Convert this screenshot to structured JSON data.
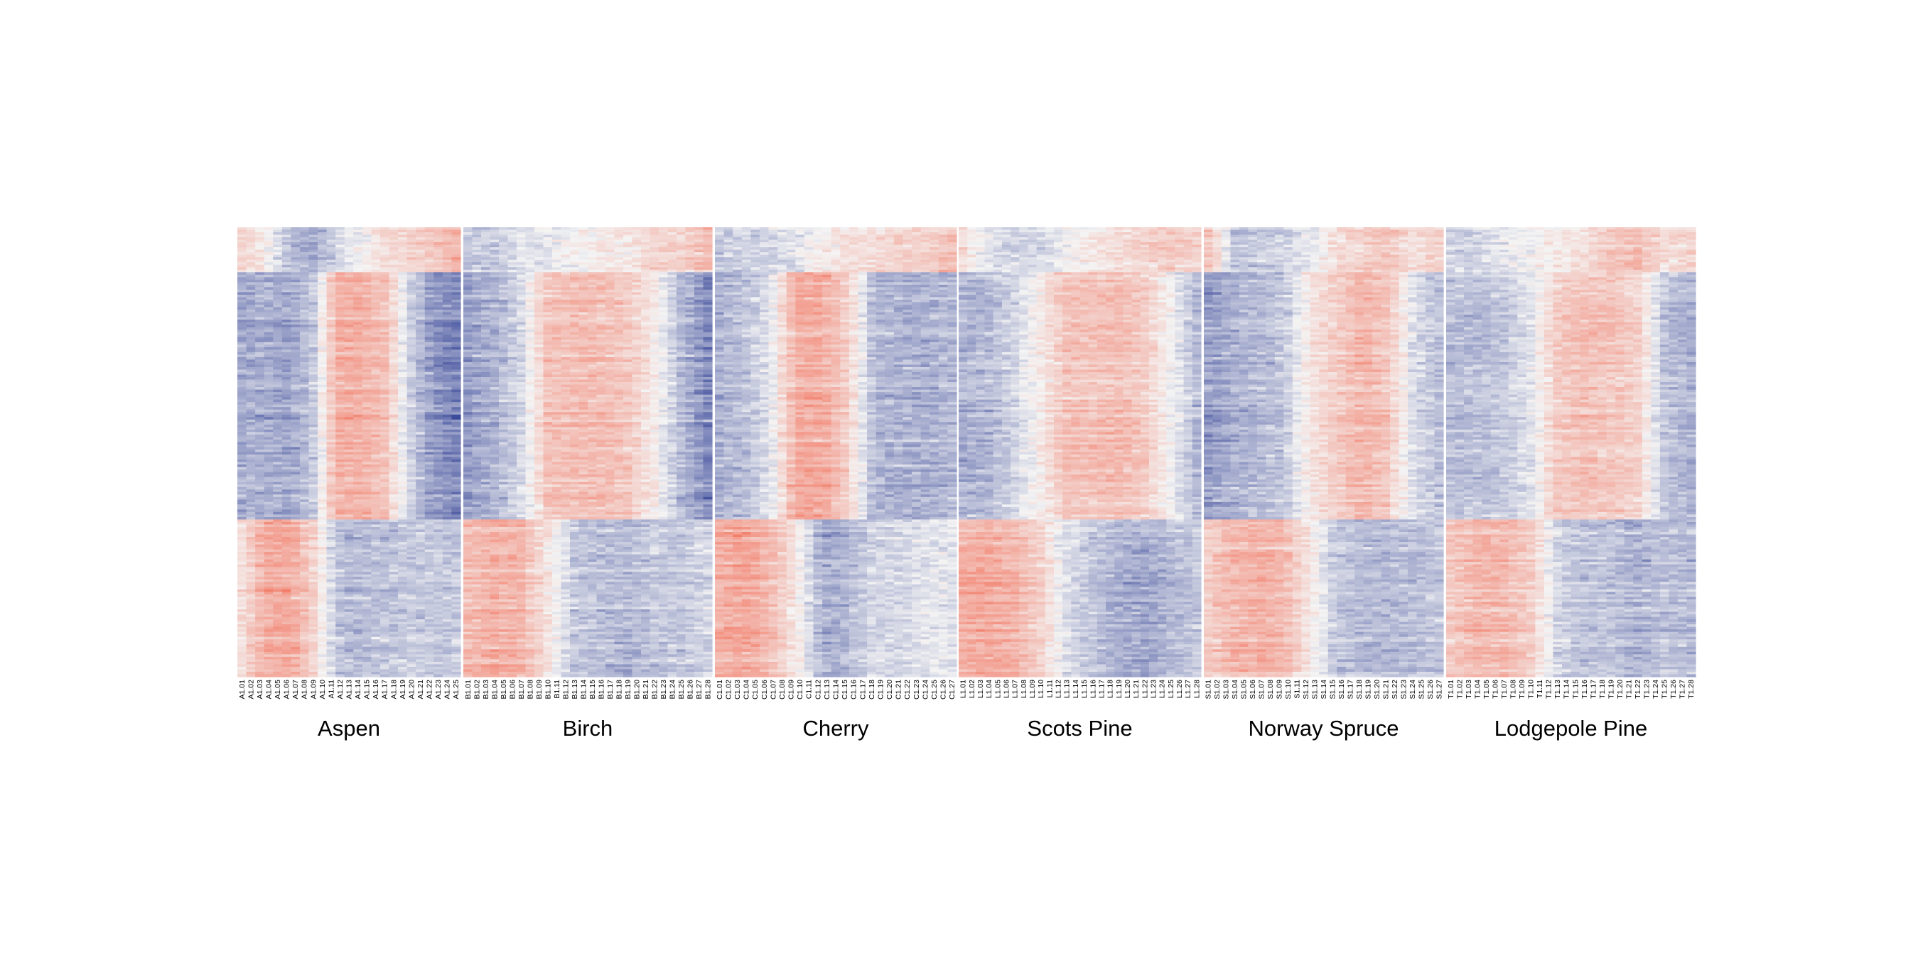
{
  "chart_data": {
    "type": "heatmap",
    "title": "",
    "colorscale": {
      "low": "#3b4a9a",
      "mid": "#f4f4f4",
      "high": "#f2735e"
    },
    "n_rows_displayed": 180,
    "row_groups": [
      {
        "rows": [
          0,
          18
        ],
        "profile": [
          0.4,
          0.1,
          -0.2,
          -0.3,
          -0.1,
          0.1,
          0.3,
          0.5,
          0.6,
          0.7
        ]
      },
      {
        "rows": [
          18,
          117
        ],
        "profile": [
          -0.35,
          -0.45,
          -0.25,
          0.55,
          0.65,
          0.55,
          0.05,
          -0.35,
          -0.45,
          -0.5
        ]
      },
      {
        "rows": [
          117,
          180
        ],
        "profile": [
          0.45,
          0.65,
          0.6,
          0.25,
          -0.2,
          -0.35,
          -0.4,
          -0.3,
          -0.3,
          -0.25
        ]
      }
    ],
    "panels": [
      {
        "name": "Aspen",
        "columns": [
          "A1.01",
          "A1.02",
          "A1.03",
          "A1.04",
          "A1.05",
          "A1.06",
          "A1.07",
          "A1.08",
          "A1.09",
          "A1.10",
          "A1.11",
          "A1.12",
          "A1.13",
          "A1.14",
          "A1.15",
          "A1.16",
          "A1.17",
          "A1.18",
          "A1.19",
          "A1.20",
          "A1.21",
          "A1.22",
          "A1.23",
          "A1.24",
          "A1.25"
        ],
        "profiles": [
          [
            0.3,
            0.1,
            -0.4,
            -0.5,
            -0.2,
            0.0,
            0.2,
            0.3,
            0.4,
            0.6
          ],
          [
            -0.5,
            -0.45,
            -0.55,
            -0.3,
            0.6,
            0.6,
            0.45,
            -0.2,
            -0.6,
            -0.75
          ],
          [
            0.2,
            0.65,
            0.7,
            0.3,
            -0.35,
            -0.4,
            -0.35,
            -0.3,
            -0.3,
            -0.3
          ]
        ]
      },
      {
        "name": "Birch",
        "columns": [
          "B1.01",
          "B1.02",
          "B1.03",
          "B1.04",
          "B1.05",
          "B1.06",
          "B1.07",
          "B1.08",
          "B1.09",
          "B1.10",
          "B1.11",
          "B1.12",
          "B1.13",
          "B1.14",
          "B1.15",
          "B1.16",
          "B1.17",
          "B1.18",
          "B1.19",
          "B1.20",
          "B1.21",
          "B1.22",
          "B1.23",
          "B1.24",
          "B1.25",
          "B1.26",
          "B1.27",
          "B1.28"
        ],
        "profiles": [
          [
            -0.3,
            -0.3,
            -0.1,
            -0.1,
            0.0,
            0.1,
            0.1,
            0.3,
            0.3,
            0.5
          ],
          [
            -0.6,
            -0.45,
            -0.2,
            0.45,
            0.5,
            0.5,
            0.4,
            0.1,
            -0.4,
            -0.75
          ],
          [
            0.5,
            0.6,
            0.55,
            0.15,
            -0.3,
            -0.35,
            -0.4,
            -0.3,
            -0.3,
            -0.2
          ]
        ]
      },
      {
        "name": "Cherry",
        "columns": [
          "C1.01",
          "C1.02",
          "C1.03",
          "C1.04",
          "C1.05",
          "C1.06",
          "C1.07",
          "C1.08",
          "C1.09",
          "C1.10",
          "C1.11",
          "C1.12",
          "C1.13",
          "C1.14",
          "C1.15",
          "C1.16",
          "C1.17",
          "C1.18",
          "C1.19",
          "C1.20",
          "C1.21",
          "C1.22",
          "C1.23",
          "C1.24",
          "C1.25",
          "C1.26",
          "C1.27"
        ],
        "profiles": [
          [
            -0.3,
            -0.2,
            -0.2,
            -0.1,
            0.1,
            0.2,
            0.2,
            0.3,
            0.3,
            0.5
          ],
          [
            -0.45,
            -0.35,
            -0.1,
            0.65,
            0.65,
            0.3,
            -0.4,
            -0.45,
            -0.45,
            -0.4
          ],
          [
            0.6,
            0.7,
            0.5,
            0.1,
            -0.5,
            -0.4,
            -0.2,
            -0.2,
            -0.1,
            -0.1
          ]
        ]
      },
      {
        "name": "Scots Pine",
        "columns": [
          "L1.01",
          "L1.02",
          "L1.03",
          "L1.04",
          "L1.05",
          "L1.06",
          "L1.07",
          "L1.08",
          "L1.09",
          "L1.10",
          "L1.11",
          "L1.12",
          "L1.13",
          "L1.14",
          "L1.15",
          "L1.16",
          "L1.17",
          "L1.18",
          "L1.19",
          "L1.20",
          "L1.21",
          "L1.22",
          "L1.23",
          "L1.24",
          "L1.25",
          "L1.26",
          "L1.27",
          "L1.28"
        ],
        "profiles": [
          [
            0.2,
            -0.1,
            -0.2,
            -0.2,
            0.0,
            0.1,
            0.2,
            0.3,
            0.4,
            0.3
          ],
          [
            -0.45,
            -0.4,
            -0.2,
            0.1,
            0.45,
            0.45,
            0.5,
            0.35,
            0.0,
            -0.4
          ],
          [
            0.6,
            0.65,
            0.55,
            0.3,
            -0.15,
            -0.3,
            -0.45,
            -0.5,
            -0.4,
            -0.3
          ]
        ]
      },
      {
        "name": "Norway Spruce",
        "columns": [
          "S1.01",
          "S1.02",
          "S1.03",
          "S1.04",
          "S1.05",
          "S1.06",
          "S1.07",
          "S1.08",
          "S1.09",
          "S1.10",
          "S1.11",
          "S1.12",
          "S1.13",
          "S1.14",
          "S1.15",
          "S1.16",
          "S1.17",
          "S1.18",
          "S1.19",
          "S1.20",
          "S1.21",
          "S1.22",
          "S1.23",
          "S1.24",
          "S1.25",
          "S1.26",
          "S1.27"
        ],
        "profiles": [
          [
            0.4,
            -0.3,
            -0.3,
            -0.2,
            -0.1,
            0.2,
            0.3,
            0.4,
            0.2,
            0.3
          ],
          [
            -0.6,
            -0.45,
            -0.4,
            -0.3,
            0.15,
            0.35,
            0.55,
            0.4,
            -0.15,
            -0.35
          ],
          [
            0.35,
            0.55,
            0.6,
            0.5,
            0.1,
            -0.3,
            -0.4,
            -0.4,
            -0.35,
            -0.3
          ]
        ]
      },
      {
        "name": "Lodgepole Pine",
        "columns": [
          "T1.01",
          "T1.02",
          "T1.03",
          "T1.04",
          "T1.05",
          "T1.06",
          "T1.07",
          "T1.08",
          "T1.09",
          "T1.10",
          "T1.11",
          "T1.12",
          "T1.13",
          "T1.14",
          "T1.15",
          "T1.16",
          "T1.17",
          "T1.18",
          "T1.19",
          "T1.20",
          "T1.21",
          "T1.22",
          "T1.23",
          "T1.24",
          "T1.25",
          "T1.26",
          "T1.27",
          "T1.28"
        ],
        "profiles": [
          [
            -0.2,
            -0.2,
            -0.1,
            0.0,
            0.1,
            0.2,
            0.4,
            0.5,
            0.2,
            0.3
          ],
          [
            -0.35,
            -0.35,
            -0.3,
            -0.1,
            0.35,
            0.45,
            0.4,
            0.3,
            -0.3,
            -0.45
          ],
          [
            0.4,
            0.55,
            0.55,
            0.35,
            -0.2,
            -0.35,
            -0.35,
            -0.45,
            -0.35,
            -0.4
          ]
        ]
      }
    ]
  }
}
